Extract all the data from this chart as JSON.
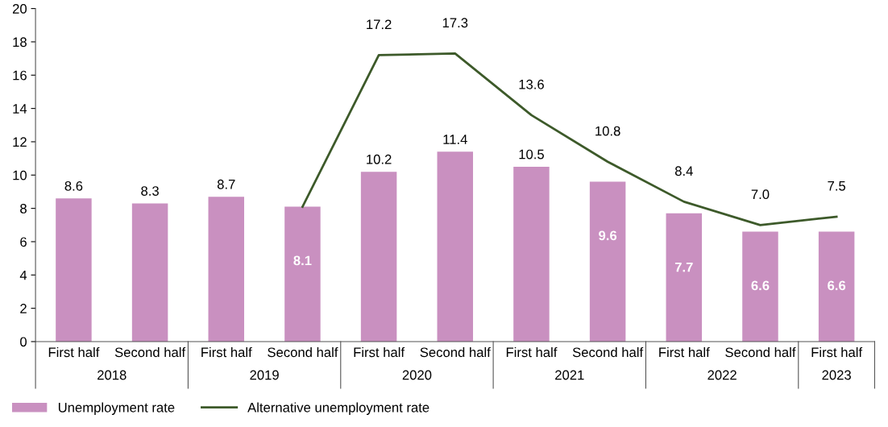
{
  "chart_data": {
    "type": "bar",
    "categories": [
      "First half",
      "Second half",
      "First half",
      "Second half",
      "First half",
      "Second half",
      "First half",
      "Second half",
      "First half",
      "Second half",
      "First half"
    ],
    "annotations": [
      "2018",
      "2019",
      "2020",
      "2021",
      "2022",
      "2023"
    ],
    "series": [
      {
        "name": "Unemployment rate",
        "color": "#c990c0",
        "values": [
          8.6,
          8.3,
          8.7,
          8.1,
          10.2,
          11.4,
          10.5,
          9.6,
          7.7,
          6.6,
          6.6
        ],
        "value_labels": [
          "8.6",
          "8.3",
          "8.7",
          "8.1",
          "10.2",
          "11.4",
          "10.5",
          "9.6",
          "7.7",
          "6.6",
          "6.6"
        ]
      },
      {
        "name": "Alternative unemployment rate",
        "type": "line",
        "color": "#3d5a2a",
        "values": [
          null,
          null,
          null,
          8.1,
          17.2,
          17.3,
          13.6,
          10.8,
          8.4,
          7.0,
          7.5
        ],
        "value_labels": [
          null,
          null,
          null,
          null,
          "17.2",
          "17.3",
          "13.6",
          "10.8",
          "8.4",
          "7.0",
          "7.5"
        ]
      }
    ],
    "ylim": [
      0,
      20
    ],
    "yticks": [
      0,
      2,
      4,
      6,
      8,
      10,
      12,
      14,
      16,
      18,
      20
    ],
    "grid": false,
    "legend": "bottom left",
    "marker": "none",
    "line_style": "solid"
  }
}
